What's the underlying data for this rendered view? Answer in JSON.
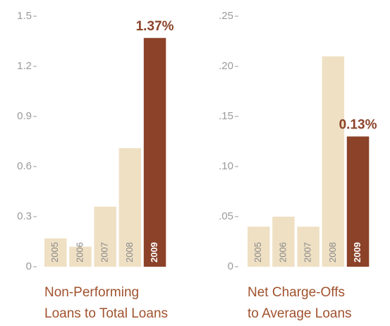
{
  "chart_data": [
    {
      "type": "bar",
      "title": [
        "Non-Performing",
        "Loans to Total Loans"
      ],
      "categories": [
        "2005",
        "2006",
        "2007",
        "2008",
        "2009"
      ],
      "values": [
        0.17,
        0.12,
        0.36,
        0.71,
        1.37
      ],
      "value_labels": [
        null,
        null,
        null,
        null,
        "1.37%"
      ],
      "colors": [
        "#efe0c4",
        "#efe0c4",
        "#efe0c4",
        "#efe0c4",
        "#8b4229"
      ],
      "ylim": [
        0,
        1.5
      ],
      "yticks": [
        0,
        0.3,
        0.6,
        0.9,
        1.2,
        1.5
      ]
    },
    {
      "type": "bar",
      "title": [
        "Net Charge-Offs",
        "to Average Loans"
      ],
      "categories": [
        "2005",
        "2006",
        "2007",
        "2008",
        "2009"
      ],
      "values": [
        0.04,
        0.05,
        0.04,
        0.21,
        0.13
      ],
      "value_labels": [
        null,
        null,
        null,
        null,
        "0.13%"
      ],
      "colors": [
        "#efe0c4",
        "#efe0c4",
        "#efe0c4",
        "#efe0c4",
        "#8b4229"
      ],
      "ylim": [
        0,
        0.25
      ],
      "yticks": [
        0,
        {
          "value": 0.05,
          "label": ".05"
        },
        {
          "value": 0.1,
          "label": ".10"
        },
        {
          "value": 0.15,
          "label": ".15"
        },
        {
          "value": 0.2,
          "label": ".20"
        },
        {
          "value": 0.25,
          "label": ".25"
        }
      ]
    }
  ]
}
